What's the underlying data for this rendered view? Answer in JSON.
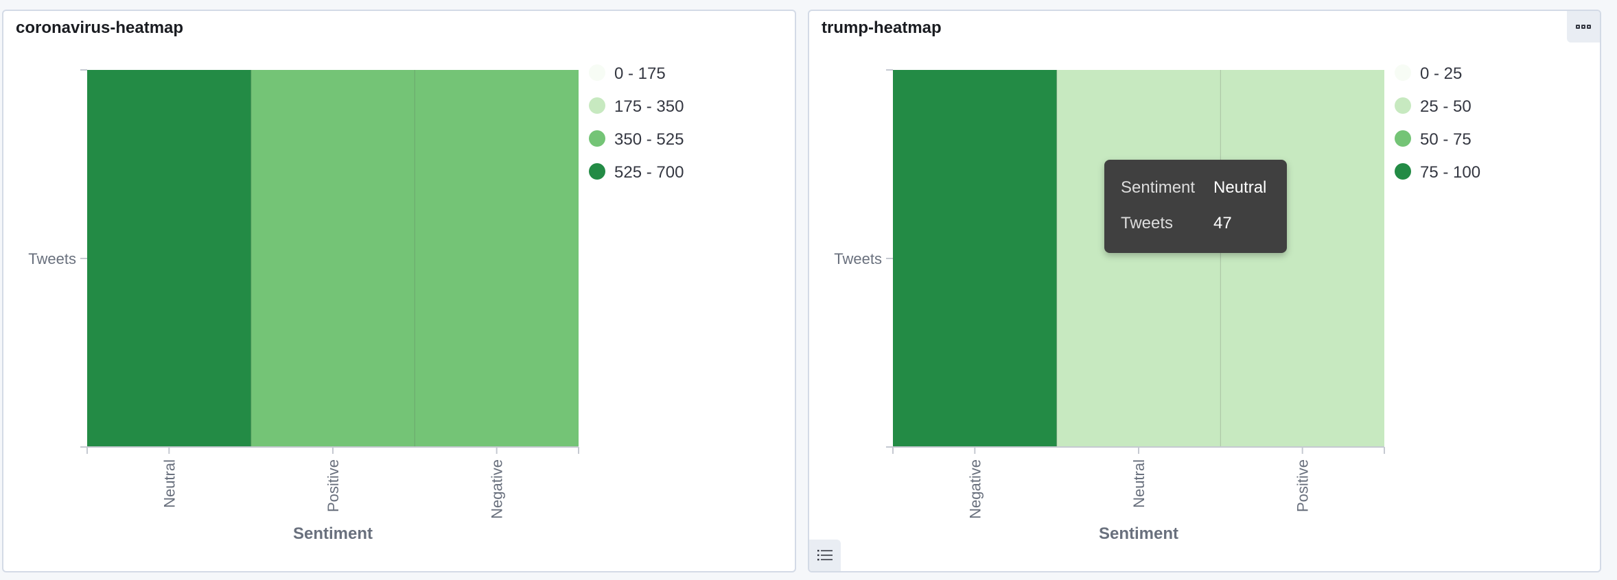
{
  "panels": [
    {
      "title": "coronavirus-heatmap",
      "tooltip": null
    },
    {
      "title": "trump-heatmap",
      "tooltip": {
        "rows": [
          {
            "key": "Sentiment",
            "value": "Neutral"
          },
          {
            "key": "Tweets",
            "value": "47"
          }
        ]
      }
    }
  ],
  "chart_data": [
    {
      "type": "heatmap",
      "title": "coronavirus-heatmap",
      "xlabel": "Sentiment",
      "ylabel": "",
      "x": [
        "Neutral",
        "Positive",
        "Negative"
      ],
      "y": [
        "Tweets"
      ],
      "values": [
        [
          700,
          430,
          420
        ]
      ],
      "legend_position": "right",
      "legend": [
        {
          "label": "0 - 175",
          "color": "#f7fcf5"
        },
        {
          "label": "175 - 350",
          "color": "#c7e9c0"
        },
        {
          "label": "350 - 525",
          "color": "#74c476"
        },
        {
          "label": "525 - 700",
          "color": "#238b45"
        }
      ]
    },
    {
      "type": "heatmap",
      "title": "trump-heatmap",
      "xlabel": "Sentiment",
      "ylabel": "",
      "x": [
        "Negative",
        "Neutral",
        "Positive"
      ],
      "y": [
        "Tweets"
      ],
      "values": [
        [
          100,
          47,
          30
        ]
      ],
      "legend_position": "right",
      "legend": [
        {
          "label": "0 - 25",
          "color": "#f7fcf5"
        },
        {
          "label": "25 - 50",
          "color": "#c7e9c0"
        },
        {
          "label": "50 - 75",
          "color": "#74c476"
        },
        {
          "label": "75 - 100",
          "color": "#238b45"
        }
      ]
    }
  ]
}
